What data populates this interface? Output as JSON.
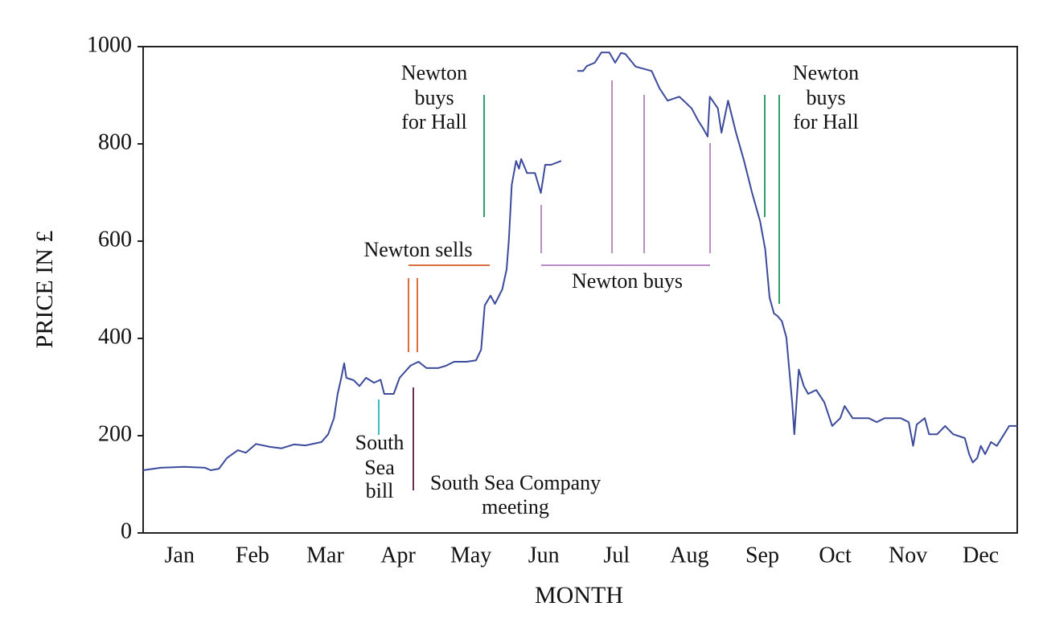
{
  "chart_data": {
    "type": "line",
    "x_label": "MONTH",
    "y_label": "PRICE IN £",
    "color": "#3b4a9a",
    "xlim": [
      0,
      12
    ],
    "xticks": [
      {
        "value": 0.5,
        "label": "Jan"
      },
      {
        "value": 1.5,
        "label": "Feb"
      },
      {
        "value": 2.5,
        "label": "Mar"
      },
      {
        "value": 3.5,
        "label": "Apr"
      },
      {
        "value": 4.5,
        "label": "May"
      },
      {
        "value": 5.5,
        "label": "Jun"
      },
      {
        "value": 6.5,
        "label": "Jul"
      },
      {
        "value": 7.5,
        "label": "Aug"
      },
      {
        "value": 8.5,
        "label": "Sep"
      },
      {
        "value": 9.5,
        "label": "Oct"
      },
      {
        "value": 10.5,
        "label": "Nov"
      },
      {
        "value": 11.5,
        "label": "Dec"
      }
    ],
    "ylim": [
      0,
      1000
    ],
    "yticks": [
      0,
      200,
      400,
      600,
      800,
      1000
    ],
    "x": [
      0,
      0.24,
      0.57,
      0.85,
      0.93,
      1.04,
      1.15,
      1.3,
      1.41,
      1.55,
      1.74,
      1.9,
      2.07,
      2.23,
      2.45,
      2.54,
      2.62,
      2.67,
      2.72,
      2.76,
      2.79,
      2.89,
      2.97,
      3.06,
      3.17,
      3.26,
      3.31,
      3.44,
      3.52,
      3.67,
      3.78,
      3.89,
      4.05,
      4.16,
      4.27,
      4.44,
      4.57,
      4.64,
      4.69,
      4.77,
      4.83,
      4.93,
      4.99,
      5.02,
      5.06,
      5.12,
      5.16,
      5.19,
      5.27,
      5.38,
      5.46,
      5.52,
      5.6,
      5.74,
      5.85,
      5.96,
      6.04,
      6.09,
      6.2,
      6.29,
      6.4,
      6.48,
      6.56,
      6.62,
      6.76,
      6.98,
      7.09,
      7.2,
      7.36,
      7.42,
      7.53,
      7.62,
      7.69,
      7.75,
      7.78,
      7.89,
      7.94,
      8.03,
      8.14,
      8.25,
      8.36,
      8.47,
      8.54,
      8.6,
      8.66,
      8.71,
      8.77,
      8.83,
      8.91,
      8.94,
      9.0,
      9.07,
      9.13,
      9.24,
      9.35,
      9.46,
      9.57,
      9.63,
      9.74,
      9.96,
      10.07,
      10.18,
      10.4,
      10.51,
      10.57,
      10.62,
      10.73,
      10.79,
      10.9,
      11.01,
      11.12,
      11.28,
      11.34,
      11.39,
      11.45,
      11.5,
      11.56,
      11.64,
      11.72,
      11.89,
      12
    ],
    "values": [
      129,
      134,
      136,
      134,
      129,
      132,
      154,
      170,
      165,
      183,
      177,
      174,
      182,
      180,
      187,
      203,
      236,
      286,
      319,
      349,
      319,
      314,
      302,
      319,
      309,
      315,
      286,
      286,
      319,
      344,
      352,
      339,
      339,
      344,
      352,
      352,
      355,
      377,
      468,
      488,
      471,
      501,
      542,
      600,
      716,
      765,
      749,
      769,
      740,
      740,
      699,
      757,
      757,
      765,
      null,
      950,
      950,
      960,
      967,
      988,
      988,
      967,
      987,
      985,
      959,
      950,
      914,
      889,
      897,
      889,
      873,
      848,
      831,
      815,
      897,
      873,
      823,
      889,
      823,
      765,
      699,
      641,
      583,
      484,
      451,
      446,
      435,
      402,
      269,
      203,
      336,
      302,
      286,
      294,
      269,
      220,
      236,
      261,
      236,
      236,
      228,
      236,
      236,
      228,
      179,
      223,
      236,
      203,
      203,
      220,
      203,
      195,
      162,
      145,
      154,
      179,
      162,
      187,
      179,
      220,
      220
    ],
    "annotations": [
      {
        "text": [
          "Newton",
          "buys",
          "for Hall"
        ],
        "color": "#2e9e6a"
      },
      {
        "text": [
          "Newton",
          "buys",
          "for Hall"
        ],
        "color": "#2e9e6a"
      },
      {
        "text": [
          "Newton sells"
        ],
        "color": "#d9713f"
      },
      {
        "text": [
          "Newton buys"
        ],
        "color": "#b98cc4"
      },
      {
        "text": [
          "South",
          "Sea",
          "bill"
        ],
        "color": "#3bbcc0"
      },
      {
        "text": [
          "South Sea Company",
          "meeting"
        ],
        "color": "#6a2d5a"
      }
    ]
  }
}
